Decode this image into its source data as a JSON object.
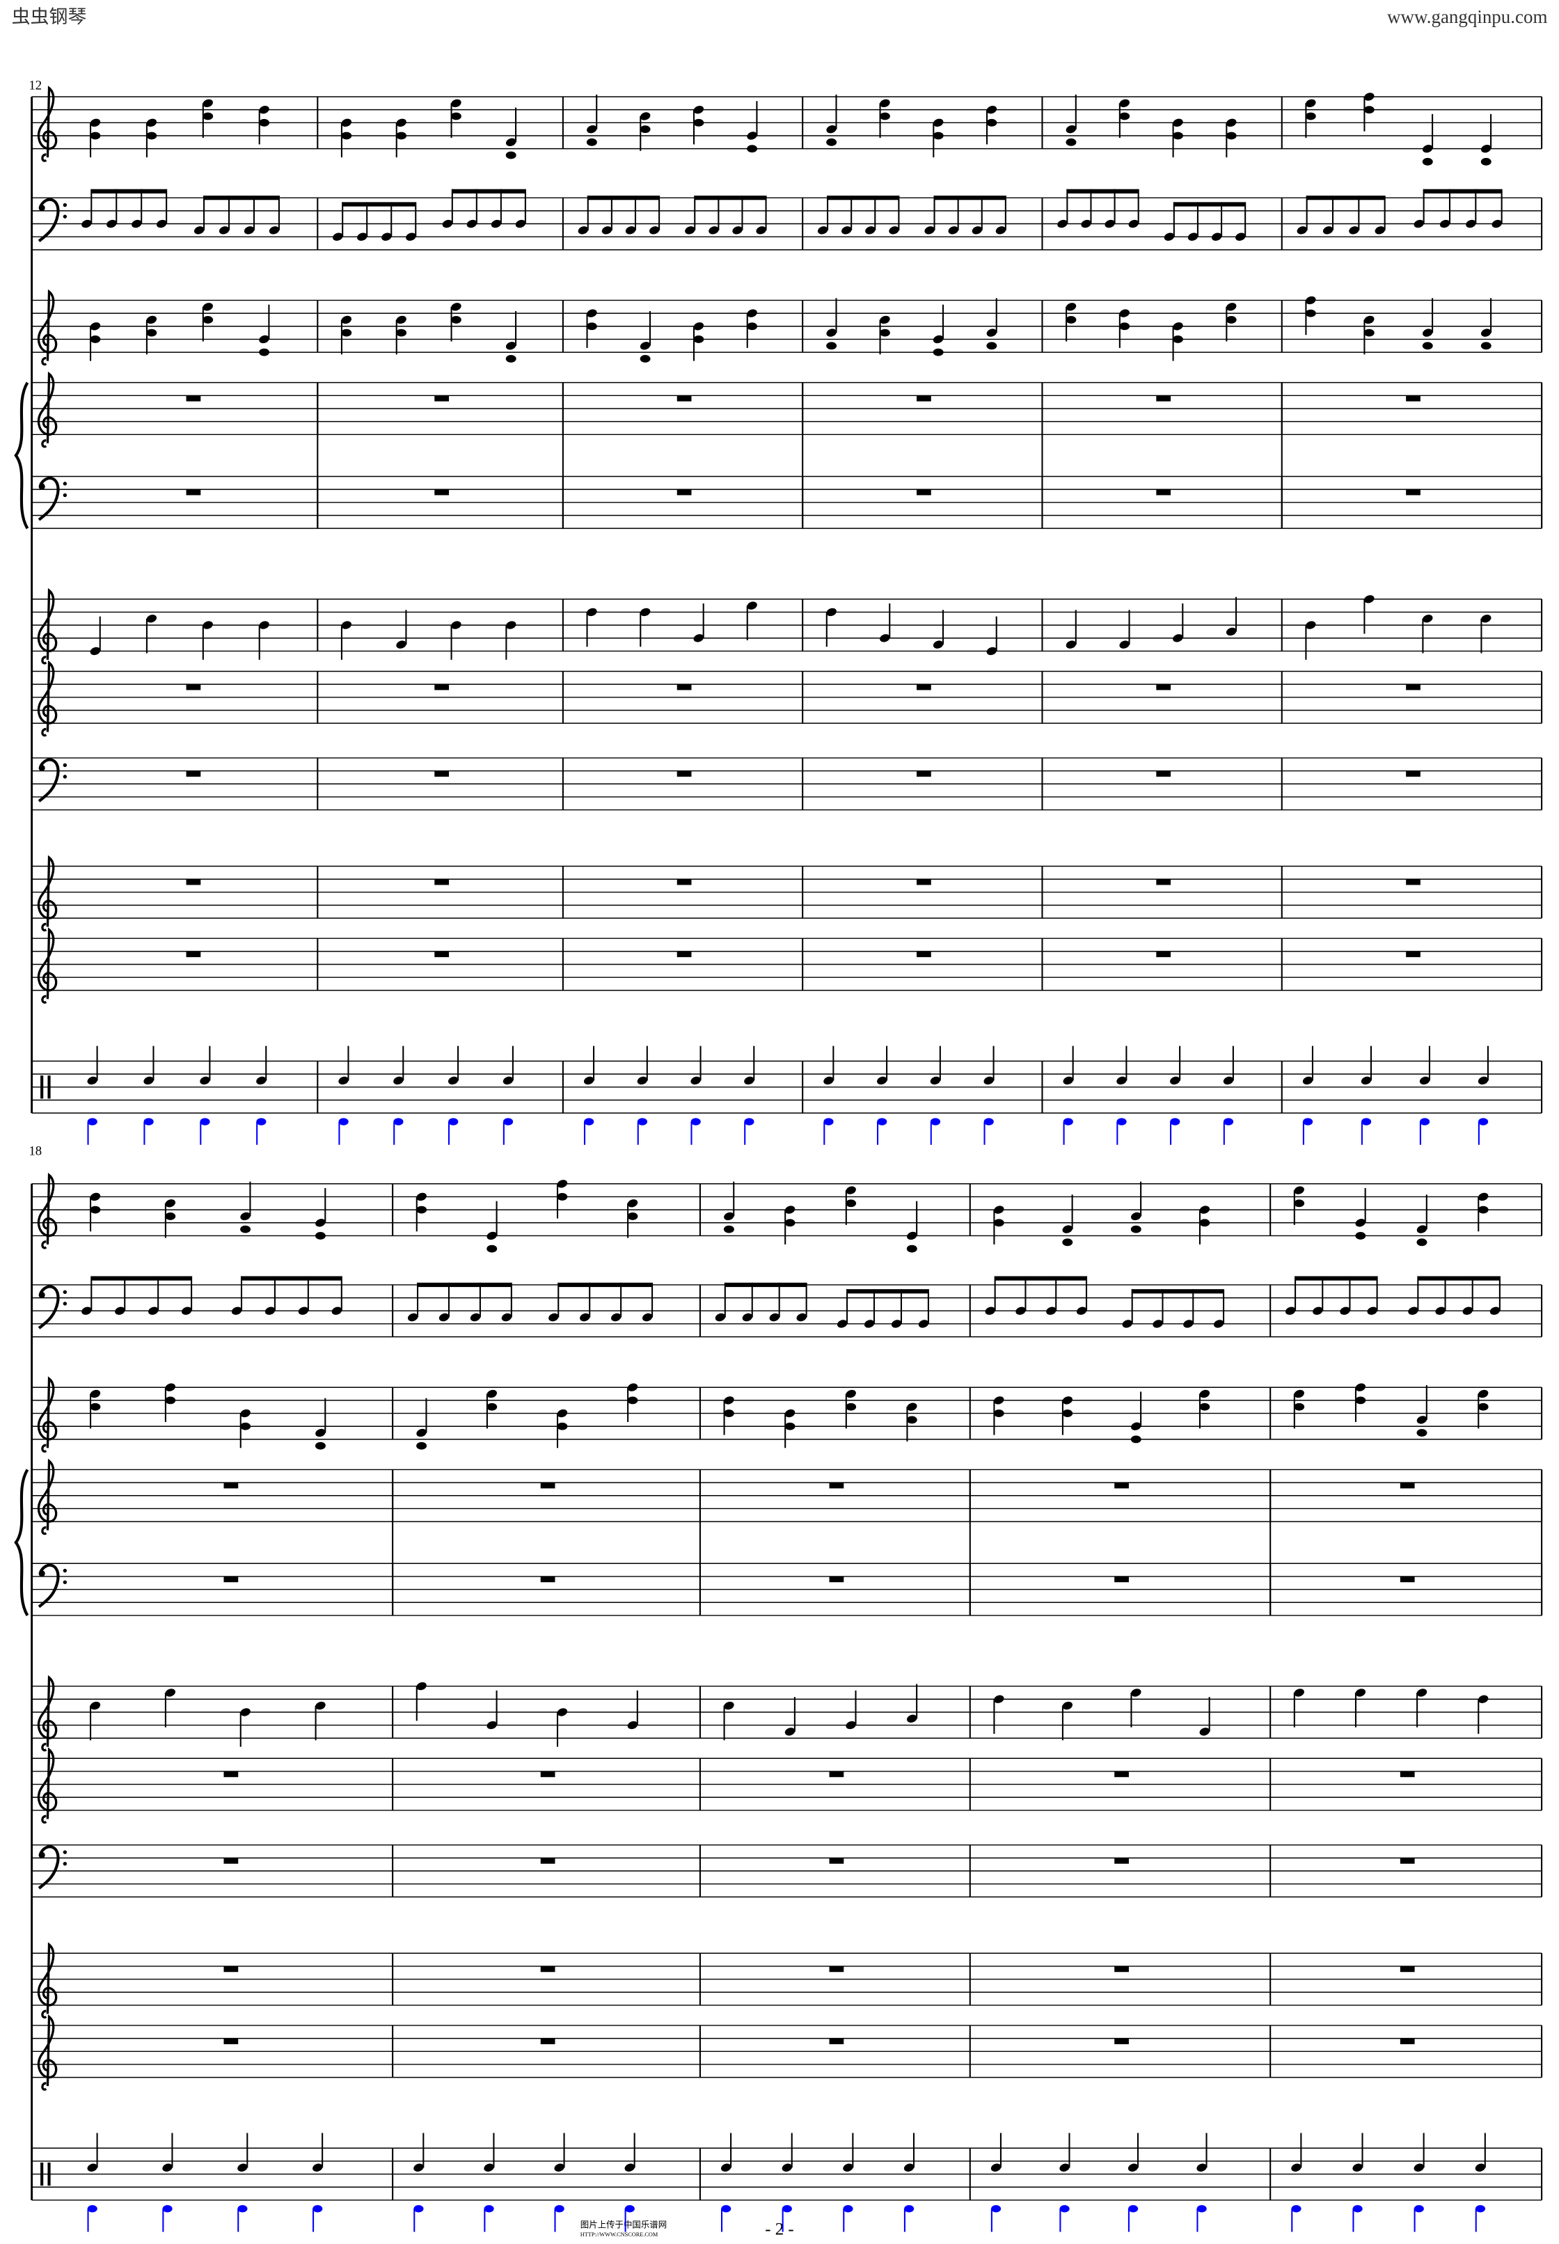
{
  "header": {
    "left": "虫虫钢琴",
    "right": "www.gangqinpu.com"
  },
  "systems": [
    {
      "measure_number": "12"
    },
    {
      "measure_number": "18"
    }
  ],
  "footer": {
    "page": "- 2 -",
    "upload": "图片上传于中国乐谱网",
    "url": "HTTP://WWW.CNSCORE.COM"
  }
}
